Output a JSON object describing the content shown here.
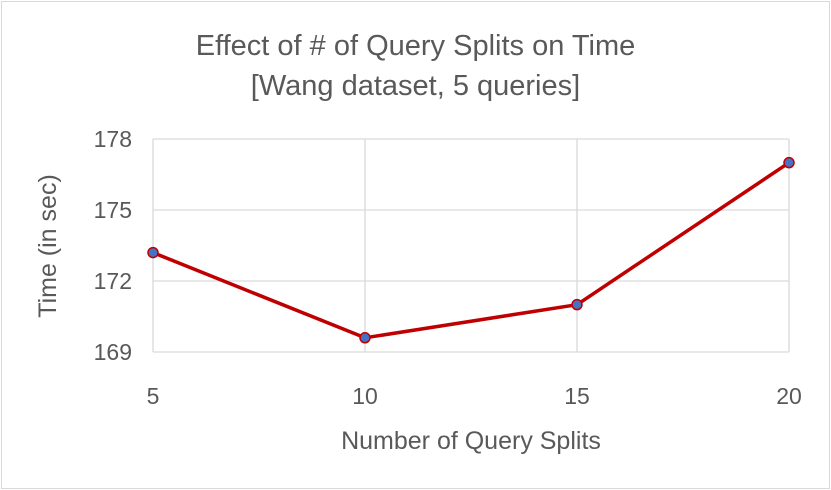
{
  "chart_data": {
    "type": "line",
    "title": "Effect of # of Query Splits on Time",
    "subtitle": "[Wang dataset, 5 queries]",
    "xlabel": "Number of Query Splits",
    "ylabel": "Time (in sec)",
    "x": [
      5,
      10,
      15,
      20
    ],
    "series": [
      {
        "values": [
          173.2,
          169.6,
          171.0,
          177.0
        ]
      }
    ],
    "ylim": [
      169,
      178
    ],
    "yticks": [
      169,
      172,
      175,
      178
    ],
    "xticks": [
      5,
      10,
      15,
      20
    ],
    "grid": true,
    "legend": "none",
    "colors": {
      "line": "#c00000",
      "marker_fill": "#4472c4",
      "marker_stroke": "#c00000",
      "grid": "#d9d9d9",
      "text": "#595959"
    }
  }
}
